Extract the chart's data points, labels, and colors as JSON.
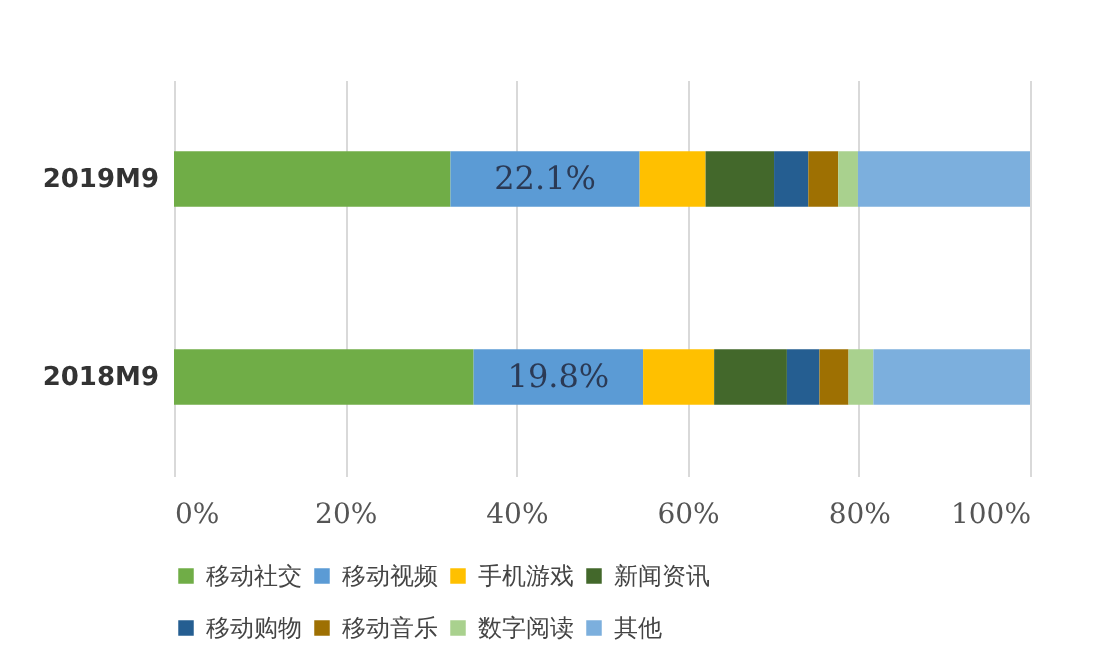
{
  "chart_data": {
    "type": "bar",
    "orientation": "horizontal",
    "stacked": true,
    "categories": [
      "2019M9",
      "2018M9"
    ],
    "series": [
      {
        "name": "移动社交",
        "color": "#70ad47",
        "values": [
          32.3,
          35.0
        ]
      },
      {
        "name": "移动视频",
        "color": "#5b9bd5",
        "values": [
          22.1,
          19.8
        ],
        "value_labels": [
          "22.1%",
          "19.8%"
        ]
      },
      {
        "name": "手机游戏",
        "color": "#ffc000",
        "values": [
          7.7,
          8.3
        ]
      },
      {
        "name": "新闻资讯",
        "color": "#43682b",
        "values": [
          8.0,
          8.5
        ]
      },
      {
        "name": "移动购物",
        "color": "#255e91",
        "values": [
          4.0,
          3.8
        ]
      },
      {
        "name": "移动音乐",
        "color": "#9e7002",
        "values": [
          3.5,
          3.4
        ]
      },
      {
        "name": "数字阅读",
        "color": "#a9d18e",
        "values": [
          2.3,
          2.9
        ]
      },
      {
        "name": "其他",
        "color": "#7cafdd",
        "values": [
          20.1,
          18.3
        ]
      }
    ],
    "xlim": [
      0,
      100
    ],
    "xticks": [
      {
        "value": 0,
        "label": "0%"
      },
      {
        "value": 20,
        "label": "20%"
      },
      {
        "value": 40,
        "label": "40%"
      },
      {
        "value": 60,
        "label": "60%"
      },
      {
        "value": 80,
        "label": "80%"
      },
      {
        "value": 100,
        "label": "100%"
      }
    ],
    "grid": "x",
    "legend": "bottom"
  }
}
